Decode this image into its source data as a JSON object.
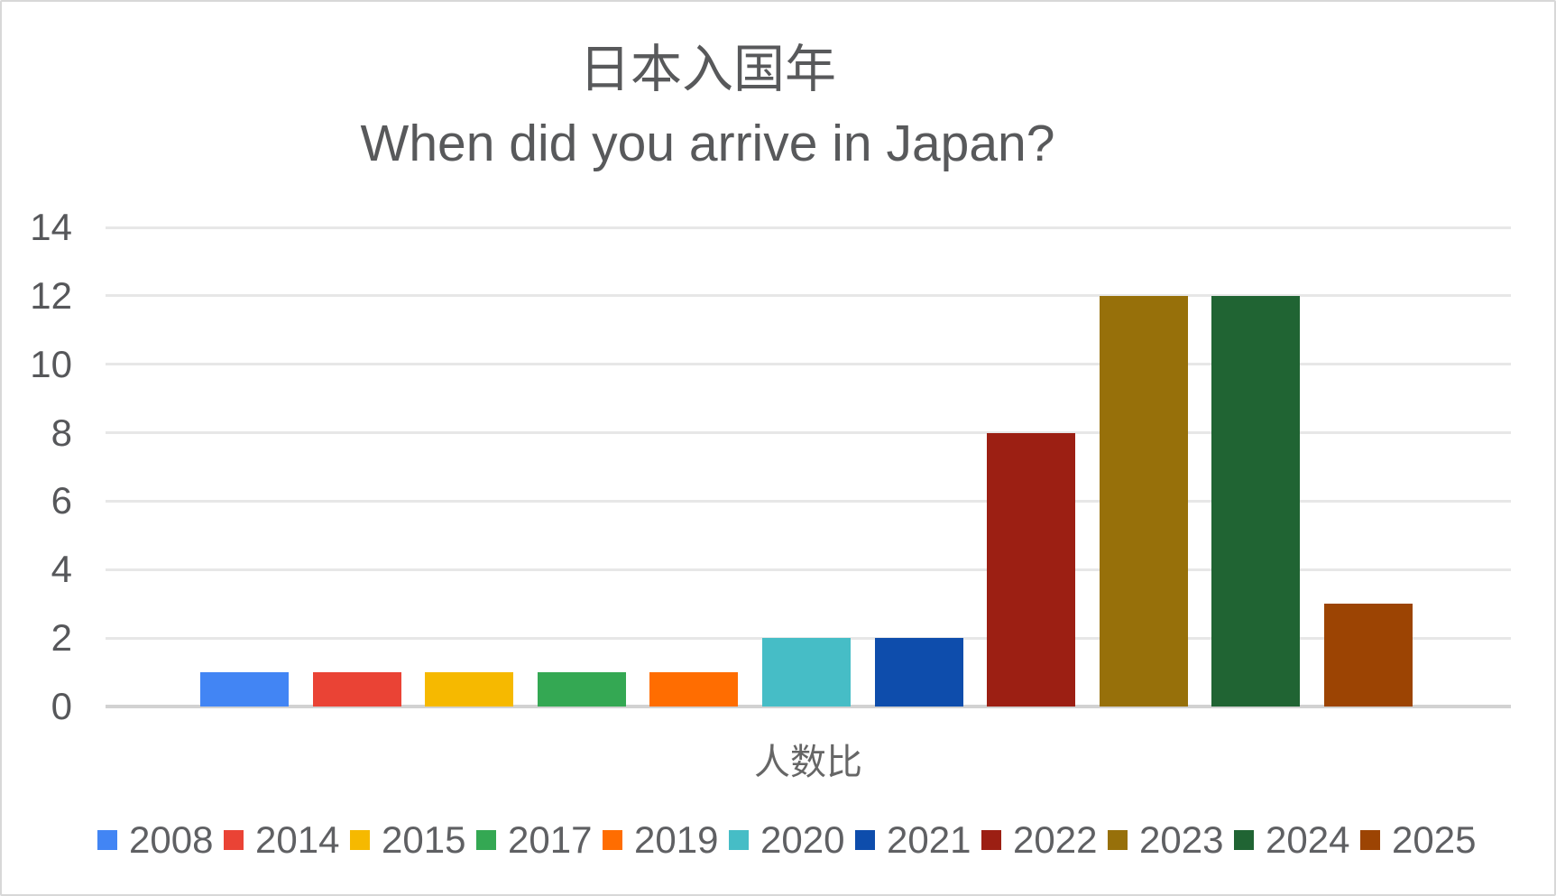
{
  "chart": {
    "title": "日本入国年",
    "subtitle": "When did you arrive in Japan?",
    "x_axis_label": "人数比"
  },
  "chart_data": {
    "type": "bar",
    "title": "日本入国年",
    "subtitle": "When did you arrive in Japan?",
    "xlabel": "人数比",
    "ylabel": "",
    "ylim": [
      0,
      14
    ],
    "y_ticks": [
      0,
      2,
      4,
      6,
      8,
      10,
      12,
      14
    ],
    "grid": true,
    "legend_position": "bottom",
    "categories": [
      "2008",
      "2014",
      "2015",
      "2017",
      "2019",
      "2020",
      "2021",
      "2022",
      "2023",
      "2024",
      "2025"
    ],
    "values": [
      1,
      1,
      1,
      1,
      1,
      2,
      2,
      8,
      12,
      12,
      3
    ],
    "colors": [
      "#4285F4",
      "#EA4335",
      "#F6B900",
      "#34A853",
      "#FF6D01",
      "#46BDC6",
      "#0E4DAC",
      "#9C1F13",
      "#97700A",
      "#206433",
      "#9C4403"
    ]
  },
  "styles": {
    "title_color": "#58595b",
    "tick_color": "#56575a",
    "legend_text_color": "#5f6063",
    "x_label_color": "#666666",
    "gridline_color": "#e7e7e7",
    "baseline_color": "#d2d2d2",
    "background": "#ffffff",
    "border_color": "#d8d8d8"
  }
}
